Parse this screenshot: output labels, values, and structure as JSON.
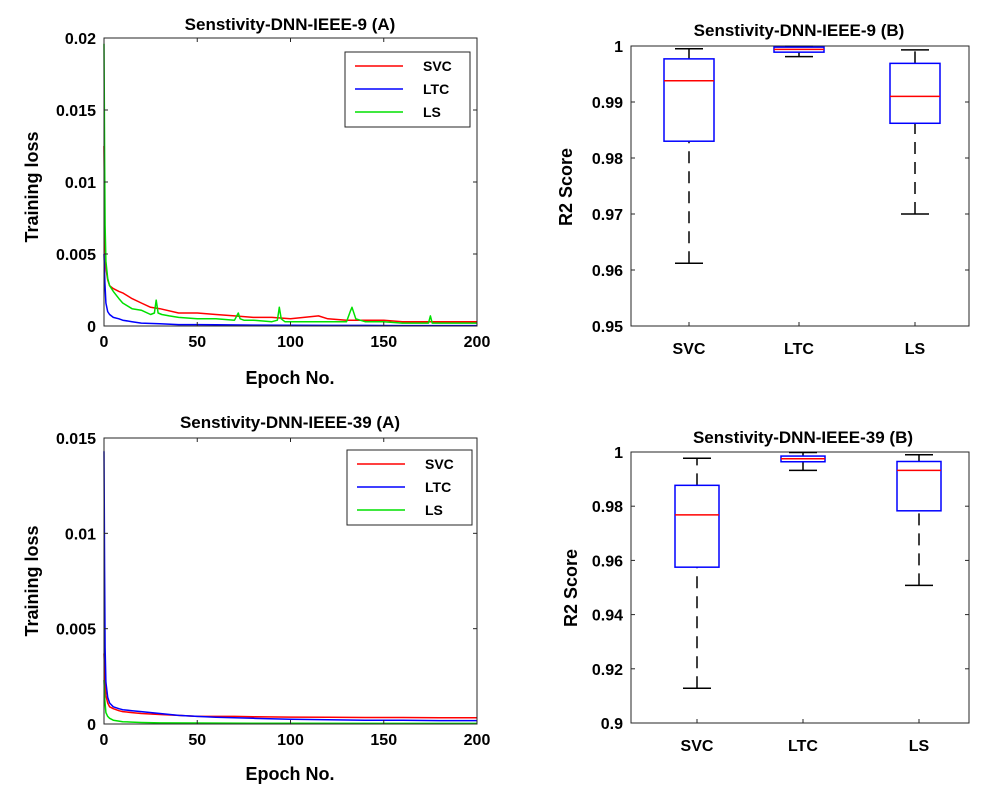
{
  "chart_data": [
    {
      "id": "tl9",
      "type": "line",
      "title": "Senstivity-DNN-IEEE-9 (A)",
      "xlabel": "Epoch No.",
      "ylabel": "Training loss",
      "xlim": [
        0,
        200
      ],
      "ylim": [
        0,
        0.02
      ],
      "xticks": [
        0,
        50,
        100,
        150,
        200
      ],
      "xtick_labels": [
        "0",
        "50",
        "100",
        "150",
        "200"
      ],
      "yticks": [
        0,
        0.005,
        0.01,
        0.015,
        0.02
      ],
      "ytick_labels": [
        "0",
        "0.005",
        "0.01",
        "0.015",
        "0.02"
      ],
      "legend_position": "top-right",
      "series": [
        {
          "name": "SVC",
          "color": "#ff0000",
          "x": [
            0,
            0.5,
            1,
            2,
            3,
            5,
            8,
            10,
            15,
            20,
            25,
            30,
            40,
            50,
            60,
            70,
            80,
            90,
            100,
            115,
            120,
            130,
            140,
            150,
            160,
            170,
            180,
            190,
            200
          ],
          "y": [
            0.0125,
            0.006,
            0.004,
            0.0032,
            0.0028,
            0.0026,
            0.0024,
            0.0023,
            0.0019,
            0.0016,
            0.0013,
            0.0012,
            0.0009,
            0.0009,
            0.0008,
            0.0007,
            0.0006,
            0.0006,
            0.0005,
            0.0007,
            0.0005,
            0.0004,
            0.0004,
            0.0004,
            0.0003,
            0.0003,
            0.0003,
            0.0003,
            0.0003
          ]
        },
        {
          "name": "LTC",
          "color": "#0000ff",
          "x": [
            0,
            0.5,
            1,
            2,
            3,
            5,
            8,
            10,
            15,
            20,
            30,
            40,
            50,
            60,
            80,
            100,
            120,
            140,
            160,
            180,
            200
          ],
          "y": [
            0.005,
            0.003,
            0.0016,
            0.001,
            0.0008,
            0.0006,
            0.0005,
            0.0004,
            0.0003,
            0.0002,
            0.00015,
            0.0001,
            0.0001,
            8e-05,
            6e-05,
            5e-05,
            4e-05,
            4e-05,
            3e-05,
            3e-05,
            3e-05
          ]
        },
        {
          "name": "LS",
          "color": "#00e000",
          "x": [
            0,
            0.3,
            0.6,
            1,
            2,
            3,
            5,
            8,
            10,
            15,
            20,
            25,
            27,
            28,
            29,
            31,
            35,
            40,
            50,
            60,
            70,
            72,
            73,
            75,
            80,
            90,
            93,
            94,
            95,
            97,
            100,
            110,
            120,
            130,
            132,
            133,
            135,
            140,
            150,
            160,
            170,
            174,
            175,
            176,
            180,
            190,
            200
          ],
          "y": [
            0.0196,
            0.012,
            0.007,
            0.0045,
            0.0033,
            0.0028,
            0.0024,
            0.0019,
            0.0016,
            0.0012,
            0.0011,
            0.0008,
            0.0009,
            0.0018,
            0.0009,
            0.0008,
            0.0007,
            0.0006,
            0.0005,
            0.0005,
            0.0004,
            0.0009,
            0.0005,
            0.0004,
            0.0004,
            0.0003,
            0.0004,
            0.0013,
            0.0005,
            0.0003,
            0.0003,
            0.0003,
            0.0003,
            0.0003,
            0.001,
            0.0013,
            0.0005,
            0.0003,
            0.0003,
            0.0002,
            0.0002,
            0.0002,
            0.0007,
            0.0002,
            0.0002,
            0.0002,
            0.0002
          ]
        }
      ]
    },
    {
      "id": "box9",
      "type": "boxplot",
      "title": "Senstivity-DNN-IEEE-9 (B)",
      "xlabel": "",
      "ylabel": "R2 Score",
      "ylim": [
        0.95,
        1
      ],
      "yticks": [
        0.95,
        0.96,
        0.97,
        0.98,
        0.99,
        1
      ],
      "ytick_labels": [
        "0.95",
        "0.96",
        "0.97",
        "0.98",
        "0.99",
        "1"
      ],
      "categories": [
        "SVC",
        "LTC",
        "LS"
      ],
      "boxes": [
        {
          "min": 0.9612,
          "q1": 0.983,
          "median": 0.9938,
          "q3": 0.9977,
          "max": 0.9995
        },
        {
          "min": 0.9981,
          "q1": 0.9989,
          "median": 0.9994,
          "q3": 0.9998,
          "max": 0.9999
        },
        {
          "min": 0.97,
          "q1": 0.9862,
          "median": 0.991,
          "q3": 0.9969,
          "max": 0.9993
        }
      ]
    },
    {
      "id": "tl39",
      "type": "line",
      "title": "Senstivity-DNN-IEEE-39 (A)",
      "xlabel": "Epoch No.",
      "ylabel": "Training loss",
      "xlim": [
        0,
        200
      ],
      "ylim": [
        0,
        0.015
      ],
      "xticks": [
        0,
        50,
        100,
        150,
        200
      ],
      "xtick_labels": [
        "0",
        "50",
        "100",
        "150",
        "200"
      ],
      "yticks": [
        0,
        0.005,
        0.01,
        0.015
      ],
      "ytick_labels": [
        "0",
        "0.005",
        "0.01",
        "0.015"
      ],
      "legend_position": "top-right",
      "series": [
        {
          "name": "SVC",
          "color": "#ff0000",
          "x": [
            0,
            0.5,
            1,
            2,
            3,
            5,
            8,
            10,
            15,
            20,
            30,
            40,
            50,
            60,
            70,
            80,
            100,
            120,
            140,
            160,
            180,
            200
          ],
          "y": [
            0.0037,
            0.0025,
            0.0015,
            0.0011,
            0.0009,
            0.0008,
            0.0007,
            0.00065,
            0.0006,
            0.00055,
            0.0005,
            0.00045,
            0.0004,
            0.0004,
            0.0004,
            0.00038,
            0.00036,
            0.00035,
            0.00034,
            0.00034,
            0.00033,
            0.00033
          ]
        },
        {
          "name": "LTC",
          "color": "#0000ff",
          "x": [
            0,
            0.3,
            0.6,
            1,
            2,
            3,
            5,
            8,
            10,
            15,
            20,
            30,
            40,
            50,
            60,
            80,
            100,
            120,
            140,
            160,
            180,
            200
          ],
          "y": [
            0.0143,
            0.008,
            0.004,
            0.0022,
            0.0014,
            0.0011,
            0.0009,
            0.0008,
            0.00075,
            0.0007,
            0.00065,
            0.00055,
            0.00045,
            0.0004,
            0.00035,
            0.0003,
            0.00025,
            0.00022,
            0.0002,
            0.0002,
            0.00018,
            0.00018
          ]
        },
        {
          "name": "LS",
          "color": "#00e000",
          "x": [
            0,
            0.5,
            1,
            2,
            3,
            5,
            8,
            10,
            15,
            20,
            30,
            50,
            80,
            100,
            150,
            200
          ],
          "y": [
            0.0023,
            0.0012,
            0.0006,
            0.0004,
            0.0003,
            0.0002,
            0.00015,
            0.00012,
            0.0001,
            8e-05,
            6e-05,
            5e-05,
            4e-05,
            4e-05,
            3e-05,
            3e-05
          ]
        }
      ]
    },
    {
      "id": "box39",
      "type": "boxplot",
      "title": "Senstivity-DNN-IEEE-39 (B)",
      "xlabel": "",
      "ylabel": "R2 Score",
      "ylim": [
        0.9,
        1
      ],
      "yticks": [
        0.9,
        0.92,
        0.94,
        0.96,
        0.98,
        1
      ],
      "ytick_labels": [
        "0.9",
        "0.92",
        "0.94",
        "0.96",
        "0.98",
        "1"
      ],
      "categories": [
        "SVC",
        "LTC",
        "LS"
      ],
      "boxes": [
        {
          "min": 0.9128,
          "q1": 0.9575,
          "median": 0.9768,
          "q3": 0.9877,
          "max": 0.9977
        },
        {
          "min": 0.9932,
          "q1": 0.9964,
          "median": 0.9975,
          "q3": 0.9985,
          "max": 0.9998
        },
        {
          "min": 0.9508,
          "q1": 0.9783,
          "median": 0.9932,
          "q3": 0.9965,
          "max": 0.999
        }
      ]
    }
  ]
}
